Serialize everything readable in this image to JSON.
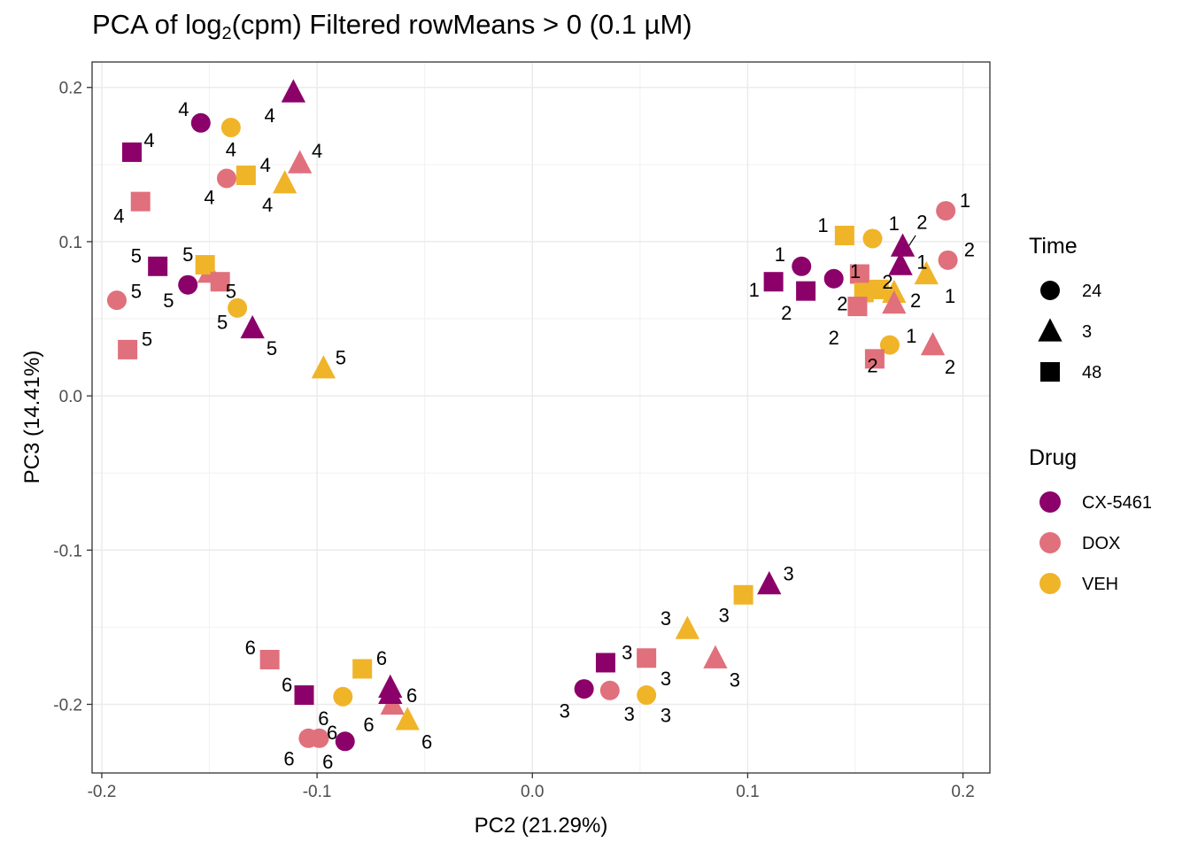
{
  "chart_data": {
    "type": "scatter",
    "title_prefix": "PCA of log",
    "title_sub": "2",
    "title_suffix": "(cpm) Filtered rowMeans > 0 (0.1 µM)",
    "xlabel": "PC2 (21.29%)",
    "ylabel": "PC3 (14.41%)",
    "xlim": [
      -0.2045,
      0.2125
    ],
    "ylim": [
      -0.2445,
      0.2165
    ],
    "xticks": [
      -0.2,
      -0.1,
      0.0,
      0.1,
      0.2
    ],
    "xtick_labels": [
      "-0.2",
      "-0.1",
      "0.0",
      "0.1",
      "0.2"
    ],
    "yticks": [
      -0.2,
      -0.1,
      0.0,
      0.1,
      0.2
    ],
    "ytick_labels": [
      "-0.2",
      "-0.1",
      "0.0",
      "0.1",
      "0.2"
    ],
    "grid": true,
    "legends": [
      {
        "title": "Time",
        "kind": "shape",
        "items": [
          {
            "label": "24",
            "shape": "circle"
          },
          {
            "label": "3",
            "shape": "triangle"
          },
          {
            "label": "48",
            "shape": "square"
          }
        ]
      },
      {
        "title": "Drug",
        "kind": "color",
        "items": [
          {
            "label": "CX-5461",
            "color": "#8b0069"
          },
          {
            "label": "DOX",
            "color": "#e0707c"
          },
          {
            "label": "VEH",
            "color": "#f0b429"
          }
        ]
      }
    ],
    "drug_colors": {
      "CX-5461": "#8b0069",
      "DOX": "#e0707c",
      "VEH": "#f0b429"
    },
    "time_shapes": {
      "24": "circle",
      "3": "triangle",
      "48": "square"
    },
    "points": [
      {
        "x": -0.154,
        "y": 0.177,
        "drug": "CX-5461",
        "time": "24",
        "label": "4",
        "lx": -0.162,
        "ly": 0.186
      },
      {
        "x": -0.14,
        "y": 0.174,
        "drug": "VEH",
        "time": "24",
        "label": "4",
        "lx": -0.14,
        "ly": 0.16
      },
      {
        "x": -0.111,
        "y": 0.197,
        "drug": "CX-5461",
        "time": "3",
        "label": "4",
        "lx": -0.122,
        "ly": 0.182
      },
      {
        "x": -0.186,
        "y": 0.158,
        "drug": "CX-5461",
        "time": "48",
        "label": "4",
        "lx": -0.178,
        "ly": 0.166
      },
      {
        "x": -0.108,
        "y": 0.151,
        "drug": "DOX",
        "time": "3",
        "label": "4",
        "lx": -0.1,
        "ly": 0.159
      },
      {
        "x": -0.133,
        "y": 0.143,
        "drug": "VEH",
        "time": "48",
        "label": "4",
        "lx": -0.124,
        "ly": 0.15
      },
      {
        "x": -0.142,
        "y": 0.141,
        "drug": "DOX",
        "time": "24",
        "label": "4",
        "lx": -0.15,
        "ly": 0.129
      },
      {
        "x": -0.115,
        "y": 0.138,
        "drug": "VEH",
        "time": "3",
        "label": "4",
        "lx": -0.123,
        "ly": 0.124
      },
      {
        "x": -0.182,
        "y": 0.126,
        "drug": "DOX",
        "time": "48",
        "label": "4",
        "lx": -0.192,
        "ly": 0.117
      },
      {
        "x": -0.174,
        "y": 0.084,
        "drug": "CX-5461",
        "time": "48",
        "label": "5",
        "lx": -0.184,
        "ly": 0.091
      },
      {
        "x": -0.15,
        "y": 0.08,
        "drug": "DOX",
        "time": "3",
        "label": "",
        "lx": 0,
        "ly": 0
      },
      {
        "x": -0.152,
        "y": 0.085,
        "drug": "VEH",
        "time": "48",
        "label": "5",
        "lx": -0.16,
        "ly": 0.092
      },
      {
        "x": -0.16,
        "y": 0.072,
        "drug": "CX-5461",
        "time": "24",
        "label": "5",
        "lx": -0.169,
        "ly": 0.062
      },
      {
        "x": -0.193,
        "y": 0.062,
        "drug": "DOX",
        "time": "24",
        "label": "5",
        "lx": -0.184,
        "ly": 0.068
      },
      {
        "x": -0.137,
        "y": 0.057,
        "drug": "VEH",
        "time": "24",
        "label": "5",
        "lx": -0.144,
        "ly": 0.048
      },
      {
        "x": -0.13,
        "y": 0.044,
        "drug": "CX-5461",
        "time": "3",
        "label": "5",
        "lx": -0.121,
        "ly": 0.031
      },
      {
        "x": -0.188,
        "y": 0.03,
        "drug": "DOX",
        "time": "48",
        "label": "5",
        "lx": -0.179,
        "ly": 0.037
      },
      {
        "x": -0.097,
        "y": 0.018,
        "drug": "VEH",
        "time": "3",
        "label": "5",
        "lx": -0.089,
        "ly": 0.025
      },
      {
        "x": -0.145,
        "y": 0.074,
        "drug": "DOX",
        "time": "48",
        "label": "5",
        "lx": -0.14,
        "ly": 0.068
      },
      {
        "x": 0.192,
        "y": 0.12,
        "drug": "DOX",
        "time": "24",
        "label": "1",
        "lx": 0.201,
        "ly": 0.127
      },
      {
        "x": 0.145,
        "y": 0.104,
        "drug": "VEH",
        "time": "48",
        "label": "1",
        "lx": 0.135,
        "ly": 0.111
      },
      {
        "x": 0.158,
        "y": 0.102,
        "drug": "VEH",
        "time": "24",
        "label": "1",
        "lx": 0.168,
        "ly": 0.112
      },
      {
        "x": 0.172,
        "y": 0.097,
        "drug": "CX-5461",
        "time": "3",
        "label": "2",
        "lx": 0.181,
        "ly": 0.113
      },
      {
        "x": 0.193,
        "y": 0.088,
        "drug": "DOX",
        "time": "24",
        "label": "2",
        "lx": 0.203,
        "ly": 0.095
      },
      {
        "x": 0.125,
        "y": 0.084,
        "drug": "CX-5461",
        "time": "24",
        "label": "1",
        "lx": 0.115,
        "ly": 0.092
      },
      {
        "x": 0.171,
        "y": 0.085,
        "drug": "CX-5461",
        "time": "3",
        "label": "1",
        "lx": 0.181,
        "ly": 0.087
      },
      {
        "x": 0.183,
        "y": 0.079,
        "drug": "VEH",
        "time": "3",
        "label": "1",
        "lx": 0.194,
        "ly": 0.065
      },
      {
        "x": 0.14,
        "y": 0.076,
        "drug": "CX-5461",
        "time": "24",
        "label": "1",
        "lx": 0.15,
        "ly": 0.081
      },
      {
        "x": 0.152,
        "y": 0.079,
        "drug": "DOX",
        "time": "48",
        "label": "",
        "lx": 0,
        "ly": 0
      },
      {
        "x": 0.112,
        "y": 0.074,
        "drug": "CX-5461",
        "time": "48",
        "label": "1",
        "lx": 0.103,
        "ly": 0.069
      },
      {
        "x": 0.127,
        "y": 0.068,
        "drug": "CX-5461",
        "time": "48",
        "label": "2",
        "lx": 0.118,
        "ly": 0.054
      },
      {
        "x": 0.154,
        "y": 0.067,
        "drug": "VEH",
        "time": "48",
        "label": "2",
        "lx": 0.144,
        "ly": 0.06
      },
      {
        "x": 0.161,
        "y": 0.069,
        "drug": "VEH",
        "time": "48",
        "label": "2",
        "lx": 0.165,
        "ly": 0.074
      },
      {
        "x": 0.168,
        "y": 0.067,
        "drug": "VEH",
        "time": "3",
        "label": "2",
        "lx": 0.178,
        "ly": 0.062
      },
      {
        "x": 0.168,
        "y": 0.06,
        "drug": "DOX",
        "time": "3",
        "label": "",
        "lx": 0,
        "ly": 0
      },
      {
        "x": 0.151,
        "y": 0.058,
        "drug": "DOX",
        "time": "48",
        "label": "2",
        "lx": 0.14,
        "ly": 0.038
      },
      {
        "x": 0.166,
        "y": 0.033,
        "drug": "VEH",
        "time": "24",
        "label": "1",
        "lx": 0.176,
        "ly": 0.039
      },
      {
        "x": 0.186,
        "y": 0.033,
        "drug": "DOX",
        "time": "3",
        "label": "2",
        "lx": 0.194,
        "ly": 0.019
      },
      {
        "x": 0.159,
        "y": 0.024,
        "drug": "DOX",
        "time": "48",
        "label": "2",
        "lx": 0.158,
        "ly": 0.02
      },
      {
        "x": 0.11,
        "y": -0.122,
        "drug": "CX-5461",
        "time": "3",
        "label": "3",
        "lx": 0.119,
        "ly": -0.115
      },
      {
        "x": 0.098,
        "y": -0.129,
        "drug": "VEH",
        "time": "48",
        "label": "3",
        "lx": 0.089,
        "ly": -0.142
      },
      {
        "x": 0.072,
        "y": -0.151,
        "drug": "VEH",
        "time": "3",
        "label": "3",
        "lx": 0.062,
        "ly": -0.144
      },
      {
        "x": 0.034,
        "y": -0.173,
        "drug": "CX-5461",
        "time": "48",
        "label": "3",
        "lx": 0.044,
        "ly": -0.166
      },
      {
        "x": 0.053,
        "y": -0.17,
        "drug": "DOX",
        "time": "48",
        "label": "3",
        "lx": 0.062,
        "ly": -0.183
      },
      {
        "x": 0.085,
        "y": -0.17,
        "drug": "DOX",
        "time": "3",
        "label": "3",
        "lx": 0.094,
        "ly": -0.184
      },
      {
        "x": 0.024,
        "y": -0.19,
        "drug": "CX-5461",
        "time": "24",
        "label": "3",
        "lx": 0.015,
        "ly": -0.204
      },
      {
        "x": 0.036,
        "y": -0.191,
        "drug": "DOX",
        "time": "24",
        "label": "3",
        "lx": 0.045,
        "ly": -0.206
      },
      {
        "x": 0.053,
        "y": -0.194,
        "drug": "VEH",
        "time": "24",
        "label": "3",
        "lx": 0.062,
        "ly": -0.207
      },
      {
        "x": -0.122,
        "y": -0.171,
        "drug": "DOX",
        "time": "48",
        "label": "6",
        "lx": -0.131,
        "ly": -0.163
      },
      {
        "x": -0.079,
        "y": -0.177,
        "drug": "VEH",
        "time": "48",
        "label": "6",
        "lx": -0.07,
        "ly": -0.17
      },
      {
        "x": -0.106,
        "y": -0.194,
        "drug": "CX-5461",
        "time": "48",
        "label": "6",
        "lx": -0.114,
        "ly": -0.187
      },
      {
        "x": -0.066,
        "y": -0.189,
        "drug": "CX-5461",
        "time": "3",
        "label": "",
        "lx": 0,
        "ly": 0
      },
      {
        "x": -0.088,
        "y": -0.195,
        "drug": "VEH",
        "time": "24",
        "label": "6",
        "lx": -0.097,
        "ly": -0.209
      },
      {
        "x": -0.065,
        "y": -0.2,
        "drug": "DOX",
        "time": "3",
        "label": "6",
        "lx": -0.056,
        "ly": -0.194
      },
      {
        "x": -0.058,
        "y": -0.21,
        "drug": "VEH",
        "time": "3",
        "label": "6",
        "lx": -0.049,
        "ly": -0.224
      },
      {
        "x": -0.104,
        "y": -0.222,
        "drug": "DOX",
        "time": "24",
        "label": "6",
        "lx": -0.113,
        "ly": -0.235
      },
      {
        "x": -0.087,
        "y": -0.224,
        "drug": "CX-5461",
        "time": "24",
        "label": "6",
        "lx": -0.093,
        "ly": -0.218
      },
      {
        "x": -0.066,
        "y": -0.193,
        "drug": "CX-5461",
        "time": "3",
        "label": "6",
        "lx": -0.076,
        "ly": -0.213
      },
      {
        "x": -0.099,
        "y": -0.222,
        "drug": "DOX",
        "time": "24",
        "label": "6",
        "lx": -0.095,
        "ly": -0.237
      }
    ],
    "connectors": [
      {
        "x1": 0.171,
        "y1": 0.089,
        "x2": 0.178,
        "y2": 0.104
      }
    ]
  }
}
